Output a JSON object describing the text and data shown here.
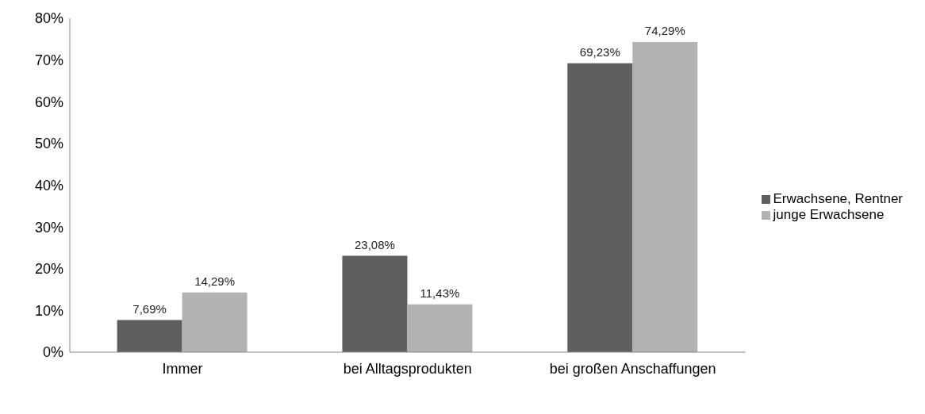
{
  "chart_data": {
    "type": "bar",
    "categories": [
      "Immer",
      "bei Alltagsprodukten",
      "bei großen Anschaffungen"
    ],
    "series": [
      {
        "name": "Erwachsene, Rentner",
        "color": "#5f5f5f",
        "values": [
          7.69,
          23.08,
          69.23
        ],
        "value_labels": [
          "7,69%",
          "23,08%",
          "69,23%"
        ]
      },
      {
        "name": "junge Erwachsene",
        "color": "#b2b2b2",
        "values": [
          14.29,
          11.43,
          74.29
        ],
        "value_labels": [
          "14,29%",
          "11,43%",
          "74,29%"
        ]
      }
    ],
    "ylim": [
      0,
      80
    ],
    "yticks": [
      {
        "value": 0,
        "label": "0%"
      },
      {
        "value": 10,
        "label": "10%"
      },
      {
        "value": 20,
        "label": "20%"
      },
      {
        "value": 30,
        "label": "30%"
      },
      {
        "value": 40,
        "label": "40%"
      },
      {
        "value": 50,
        "label": "50%"
      },
      {
        "value": 60,
        "label": "60%"
      },
      {
        "value": 70,
        "label": "70%"
      },
      {
        "value": 80,
        "label": "80%"
      }
    ],
    "grid": false,
    "legend": "right"
  }
}
